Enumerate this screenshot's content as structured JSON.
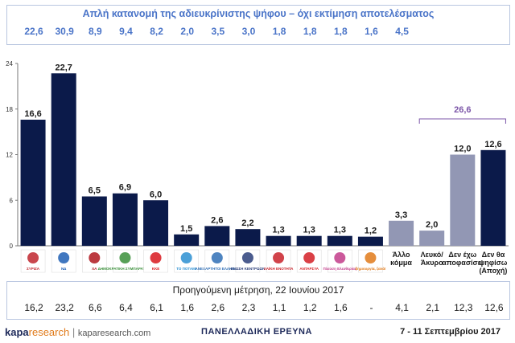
{
  "top": {
    "title": "Απλή κατανομή της αδιευκρίνιστης ψήφου – όχι εκτίμηση αποτελέσματος",
    "values": [
      "22,6",
      "30,9",
      "8,9",
      "9,4",
      "8,2",
      "2,0",
      "3,5",
      "3,0",
      "1,8",
      "1,8",
      "1,8",
      "1,6",
      "4,5"
    ]
  },
  "chart_data": {
    "type": "bar",
    "categories": [
      "ΣΥΡΙΖΑ",
      "ΝΔ",
      "Χρυσή Αυγή",
      "Δημοκρατική Συμπαράταξη",
      "ΚΚΕ",
      "Το Ποτάμι",
      "Ανεξάρτητοι Έλληνες",
      "Ένωση Κεντρώων",
      "Λαϊκή Ενότητα",
      "ΑΝΤΑΡΣΥΑ",
      "Πλεύση Ελευθερίας",
      "Δημιουργία, ξανά!",
      "Άλλο κόμμα",
      "Λευκό/ Άκυρο",
      "Δεν έχω αποφασίσει",
      "Δεν θα ψηφίσω (Αποχή)"
    ],
    "values": [
      16.6,
      22.7,
      6.5,
      6.9,
      6.0,
      1.5,
      2.6,
      2.2,
      1.3,
      1.3,
      1.3,
      1.2,
      3.3,
      2.0,
      12.0,
      12.6
    ],
    "value_labels": [
      "16,6",
      "22,7",
      "6,5",
      "6,9",
      "6,0",
      "1,5",
      "2,6",
      "2,2",
      "1,3",
      "1,3",
      "1,3",
      "1,2",
      "3,3",
      "2,0",
      "12,0",
      "12,6"
    ],
    "bar_colors": [
      "#0b1a4a",
      "#0b1a4a",
      "#0b1a4a",
      "#0b1a4a",
      "#0b1a4a",
      "#0b1a4a",
      "#0b1a4a",
      "#0b1a4a",
      "#0b1a4a",
      "#0b1a4a",
      "#0b1a4a",
      "#0b1a4a",
      "#9297b4",
      "#9297b4",
      "#9297b4",
      "#0b1a4a"
    ],
    "ylim": [
      0,
      24
    ],
    "yticks": [
      "0",
      "6",
      "12",
      "18",
      "24"
    ],
    "grid": false,
    "bracket_label": "26,6",
    "bracket_color": "#7b55a8",
    "text_labels": [
      "Άλλο κόμμα",
      "Λευκό/ Άκυρο",
      "Δεν έχω αποφασίσει",
      "Δεν θα ψηφίσω (Αποχή)"
    ]
  },
  "logos": [
    {
      "text": "ΣΥΡΙΖΑ",
      "color": "#c0262e"
    },
    {
      "text": "ΝΔ",
      "color": "#1e5fb4"
    },
    {
      "text": "ΧΑ",
      "color": "#b0181e"
    },
    {
      "text": "ΔΗΜΟΚΡΑΤΙΚΗ ΣΥΜΠΑΡΑΤΑΞΗ",
      "color": "#3a8f3a"
    },
    {
      "text": "ΚΚΕ",
      "color": "#d8191f"
    },
    {
      "text": "ΤΟ ΠΟΤΑΜΙ",
      "color": "#2b8fd1"
    },
    {
      "text": "ΑΝΕΞΑΡΤΗΤΟΙ ΕΛΛΗΝΕΣ",
      "color": "#2f6eb5"
    },
    {
      "text": "ΕΝΩΣΗ ΚΕΝΤΡΩΩΝ",
      "color": "#2b3f7a"
    },
    {
      "text": "ΛΑΪΚΗ ΕΝΟΤΗΤΑ",
      "color": "#c9222a"
    },
    {
      "text": "ΑΝΤΑΡΣΥΑ",
      "color": "#d41f26"
    },
    {
      "text": "Πλεύση Ελευθερίας",
      "color": "#c23c8a"
    },
    {
      "text": "δημιουργία, ξανά!",
      "color": "#e07a1a"
    }
  ],
  "previous": {
    "title": "Προηγούμενη μέτρηση, 22 Ιουνίου 2017",
    "values": [
      "16,2",
      "23,2",
      "6,6",
      "6,4",
      "6,1",
      "1,6",
      "2,6",
      "2,3",
      "1,1",
      "1,2",
      "1,6",
      "-",
      "4,1",
      "2,1",
      "12,3",
      "12,6"
    ]
  },
  "footer": {
    "brand_bold": "kapa",
    "brand_rest": "research",
    "separator": "|",
    "site": "kaparesearch.com",
    "survey": "ΠΑΝΕΛΛΑΔΙΚΗ ΕΡΕΥΝΑ",
    "dates": "7 - 11 Σεπτεμβρίου 2017"
  }
}
